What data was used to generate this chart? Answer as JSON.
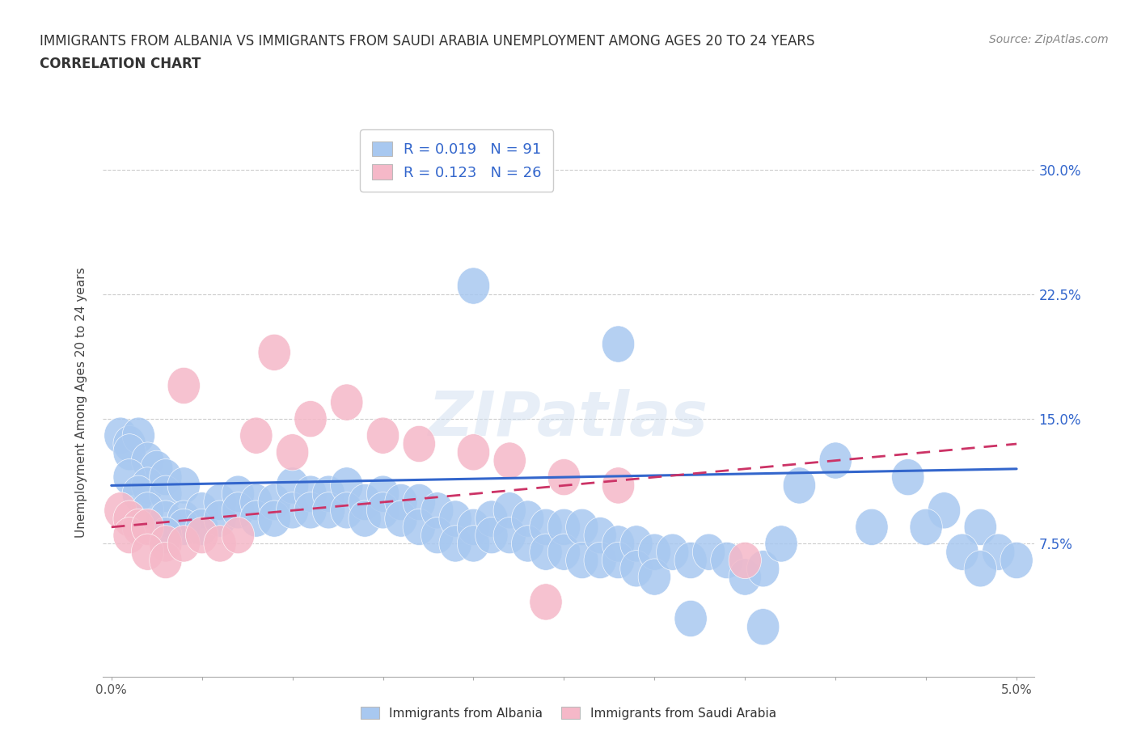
{
  "title_line1": "IMMIGRANTS FROM ALBANIA VS IMMIGRANTS FROM SAUDI ARABIA UNEMPLOYMENT AMONG AGES 20 TO 24 YEARS",
  "title_line2": "CORRELATION CHART",
  "source_text": "Source: ZipAtlas.com",
  "xlabel": "",
  "ylabel": "Unemployment Among Ages 20 to 24 years",
  "xlim": [
    -0.0005,
    0.051
  ],
  "ylim": [
    -0.005,
    0.325
  ],
  "xticks": [
    0.0,
    0.005,
    0.01,
    0.015,
    0.02,
    0.025,
    0.03,
    0.035,
    0.04,
    0.045,
    0.05
  ],
  "xticklabels": [
    "0.0%",
    "",
    "",
    "",
    "",
    "",
    "",
    "",
    "",
    "",
    "5.0%"
  ],
  "yticks": [
    0.0,
    0.075,
    0.15,
    0.225,
    0.3
  ],
  "yticklabels": [
    "",
    "7.5%",
    "15.0%",
    "22.5%",
    "30.0%"
  ],
  "grid_color": "#cccccc",
  "background_color": "#ffffff",
  "albania_color": "#a8c8f0",
  "saudi_color": "#f5b8c8",
  "albania_R": 0.019,
  "albania_N": 91,
  "saudi_R": 0.123,
  "saudi_N": 26,
  "legend_label_albania": "Immigrants from Albania",
  "legend_label_saudi": "Immigrants from Saudi Arabia",
  "albania_trend_color": "#3366cc",
  "saudi_trend_color": "#cc3366",
  "watermark": "ZIPatlas",
  "albania_scatter": [
    [
      0.0005,
      0.14
    ],
    [
      0.001,
      0.135
    ],
    [
      0.0015,
      0.14
    ],
    [
      0.001,
      0.13
    ],
    [
      0.002,
      0.125
    ],
    [
      0.0025,
      0.12
    ],
    [
      0.001,
      0.115
    ],
    [
      0.002,
      0.11
    ],
    [
      0.0015,
      0.105
    ],
    [
      0.003,
      0.115
    ],
    [
      0.003,
      0.105
    ],
    [
      0.004,
      0.11
    ],
    [
      0.002,
      0.095
    ],
    [
      0.003,
      0.09
    ],
    [
      0.004,
      0.09
    ],
    [
      0.005,
      0.095
    ],
    [
      0.004,
      0.085
    ],
    [
      0.003,
      0.08
    ],
    [
      0.005,
      0.085
    ],
    [
      0.006,
      0.1
    ],
    [
      0.006,
      0.09
    ],
    [
      0.007,
      0.105
    ],
    [
      0.007,
      0.095
    ],
    [
      0.008,
      0.1
    ],
    [
      0.008,
      0.09
    ],
    [
      0.009,
      0.1
    ],
    [
      0.009,
      0.09
    ],
    [
      0.01,
      0.11
    ],
    [
      0.01,
      0.095
    ],
    [
      0.011,
      0.105
    ],
    [
      0.011,
      0.095
    ],
    [
      0.012,
      0.105
    ],
    [
      0.012,
      0.095
    ],
    [
      0.013,
      0.11
    ],
    [
      0.013,
      0.095
    ],
    [
      0.014,
      0.1
    ],
    [
      0.014,
      0.09
    ],
    [
      0.015,
      0.105
    ],
    [
      0.015,
      0.095
    ],
    [
      0.016,
      0.1
    ],
    [
      0.016,
      0.09
    ],
    [
      0.017,
      0.1
    ],
    [
      0.017,
      0.085
    ],
    [
      0.018,
      0.095
    ],
    [
      0.018,
      0.08
    ],
    [
      0.019,
      0.09
    ],
    [
      0.019,
      0.075
    ],
    [
      0.02,
      0.085
    ],
    [
      0.02,
      0.075
    ],
    [
      0.021,
      0.09
    ],
    [
      0.021,
      0.08
    ],
    [
      0.022,
      0.095
    ],
    [
      0.022,
      0.08
    ],
    [
      0.023,
      0.09
    ],
    [
      0.023,
      0.075
    ],
    [
      0.024,
      0.085
    ],
    [
      0.024,
      0.07
    ],
    [
      0.025,
      0.085
    ],
    [
      0.025,
      0.07
    ],
    [
      0.026,
      0.085
    ],
    [
      0.026,
      0.065
    ],
    [
      0.027,
      0.08
    ],
    [
      0.027,
      0.065
    ],
    [
      0.028,
      0.075
    ],
    [
      0.028,
      0.065
    ],
    [
      0.029,
      0.075
    ],
    [
      0.029,
      0.06
    ],
    [
      0.03,
      0.07
    ],
    [
      0.03,
      0.055
    ],
    [
      0.031,
      0.07
    ],
    [
      0.032,
      0.065
    ],
    [
      0.033,
      0.07
    ],
    [
      0.034,
      0.065
    ],
    [
      0.035,
      0.055
    ],
    [
      0.036,
      0.06
    ],
    [
      0.02,
      0.23
    ],
    [
      0.028,
      0.195
    ],
    [
      0.037,
      0.075
    ],
    [
      0.038,
      0.11
    ],
    [
      0.04,
      0.125
    ],
    [
      0.042,
      0.085
    ],
    [
      0.044,
      0.115
    ],
    [
      0.046,
      0.095
    ],
    [
      0.045,
      0.085
    ],
    [
      0.048,
      0.085
    ],
    [
      0.047,
      0.07
    ],
    [
      0.049,
      0.07
    ],
    [
      0.05,
      0.065
    ],
    [
      0.048,
      0.06
    ],
    [
      0.032,
      0.03
    ],
    [
      0.036,
      0.025
    ]
  ],
  "saudi_scatter": [
    [
      0.0005,
      0.095
    ],
    [
      0.001,
      0.09
    ],
    [
      0.0015,
      0.085
    ],
    [
      0.001,
      0.08
    ],
    [
      0.002,
      0.085
    ],
    [
      0.003,
      0.075
    ],
    [
      0.002,
      0.07
    ],
    [
      0.003,
      0.065
    ],
    [
      0.004,
      0.075
    ],
    [
      0.005,
      0.08
    ],
    [
      0.006,
      0.075
    ],
    [
      0.007,
      0.08
    ],
    [
      0.004,
      0.17
    ],
    [
      0.009,
      0.19
    ],
    [
      0.008,
      0.14
    ],
    [
      0.01,
      0.13
    ],
    [
      0.011,
      0.15
    ],
    [
      0.013,
      0.16
    ],
    [
      0.015,
      0.14
    ],
    [
      0.017,
      0.135
    ],
    [
      0.02,
      0.13
    ],
    [
      0.022,
      0.125
    ],
    [
      0.025,
      0.115
    ],
    [
      0.028,
      0.11
    ],
    [
      0.035,
      0.065
    ],
    [
      0.024,
      0.04
    ]
  ]
}
